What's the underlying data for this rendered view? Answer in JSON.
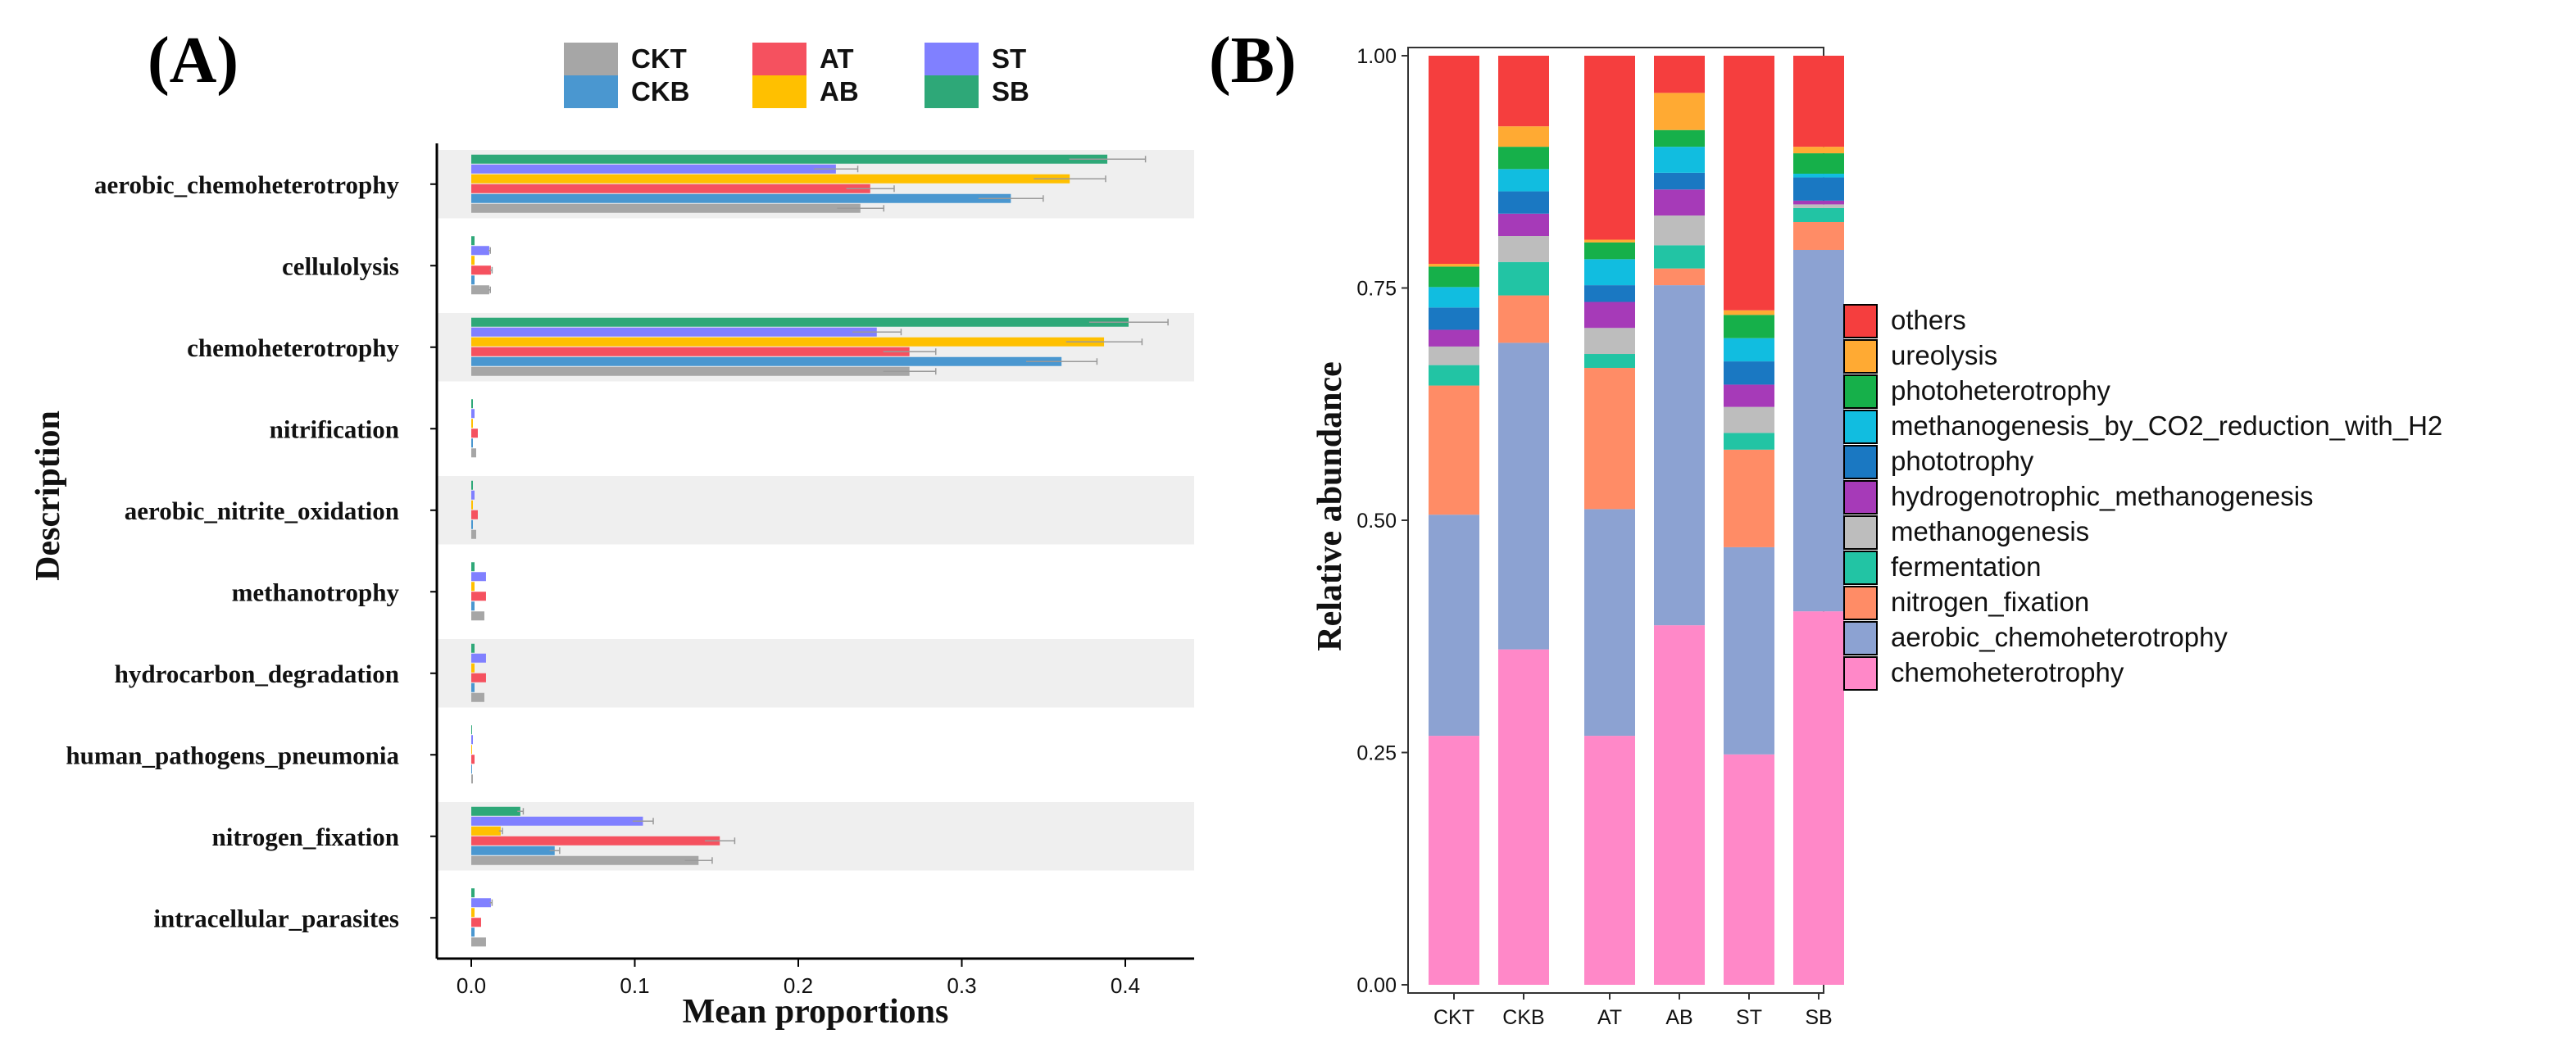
{
  "panelA": {
    "label": "(A)",
    "chart_data": {
      "type": "bar",
      "orientation": "horizontal",
      "xlabel": "Mean proportions",
      "ylabel": "Description",
      "xlim": [
        0,
        0.44
      ],
      "x_ticks": [
        "0.0",
        "0.1",
        "0.2",
        "0.3",
        "0.4"
      ],
      "categories": [
        "aerobic_chemoheterotrophy",
        "cellulolysis",
        "chemoheterotrophy",
        "nitrification",
        "aerobic_nitrite_oxidation",
        "methanotrophy",
        "hydrocarbon_degradation",
        "human_pathogens_pneumonia",
        "nitrogen_fixation",
        "intracellular_parasites"
      ],
      "series": [
        {
          "name": "CKT",
          "color": "#a6a6a6",
          "values": [
            0.238,
            0.011,
            0.268,
            0.003,
            0.003,
            0.008,
            0.008,
            0.001,
            0.139,
            0.009
          ]
        },
        {
          "name": "CKB",
          "color": "#4a97d0",
          "values": [
            0.33,
            0.002,
            0.361,
            0.001,
            0.001,
            0.002,
            0.002,
            0.0005,
            0.051,
            0.002
          ]
        },
        {
          "name": "AT",
          "color": "#f5515f",
          "values": [
            0.244,
            0.012,
            0.268,
            0.004,
            0.004,
            0.009,
            0.009,
            0.002,
            0.152,
            0.006
          ]
        },
        {
          "name": "AB",
          "color": "#ffc000",
          "values": [
            0.366,
            0.002,
            0.387,
            0.001,
            0.001,
            0.002,
            0.002,
            0.0005,
            0.018,
            0.002
          ]
        },
        {
          "name": "ST",
          "color": "#8080ff",
          "values": [
            0.223,
            0.011,
            0.248,
            0.002,
            0.002,
            0.009,
            0.009,
            0.001,
            0.105,
            0.012
          ]
        },
        {
          "name": "SB",
          "color": "#2ea878",
          "values": [
            0.389,
            0.002,
            0.402,
            0.001,
            0.001,
            0.002,
            0.002,
            0.0005,
            0.03,
            0.002
          ]
        }
      ],
      "legend": {
        "placement": "top"
      }
    }
  },
  "panelB": {
    "label": "(B)",
    "chart_data": {
      "type": "bar",
      "stacked": true,
      "ylabel": "Relative abundance",
      "ylim": [
        0,
        1
      ],
      "y_ticks": [
        "0.00",
        "0.25",
        "0.50",
        "0.75",
        "1.00"
      ],
      "categories": [
        "CKT",
        "CKB",
        "AT",
        "AB",
        "ST",
        "SB"
      ],
      "legend": {
        "placement": "right"
      },
      "series": [
        {
          "name": "chemoheterotrophy",
          "color": "#ff88c8",
          "values": [
            0.268,
            0.361,
            0.268,
            0.387,
            0.248,
            0.402
          ]
        },
        {
          "name": "aerobic_chemoheterotrophy",
          "color": "#8ca2d2",
          "values": [
            0.238,
            0.33,
            0.244,
            0.366,
            0.223,
            0.389
          ]
        },
        {
          "name": "nitrogen_fixation",
          "color": "#ff8c66",
          "values": [
            0.139,
            0.051,
            0.152,
            0.018,
            0.105,
            0.03
          ]
        },
        {
          "name": "fermentation",
          "color": "#22c4a4",
          "values": [
            0.022,
            0.036,
            0.015,
            0.025,
            0.018,
            0.015
          ]
        },
        {
          "name": "methanogenesis",
          "color": "#bdbdbd",
          "values": [
            0.02,
            0.028,
            0.028,
            0.032,
            0.028,
            0.004
          ]
        },
        {
          "name": "hydrogenotrophic_methanogenesis",
          "color": "#a63ab8",
          "values": [
            0.018,
            0.024,
            0.028,
            0.028,
            0.024,
            0.004
          ]
        },
        {
          "name": "phototrophy",
          "color": "#1a78c2",
          "values": [
            0.024,
            0.024,
            0.018,
            0.018,
            0.025,
            0.025
          ]
        },
        {
          "name": "methanogenesis_by_CO2_reduction_with_H2",
          "color": "#11bde0",
          "values": [
            0.022,
            0.024,
            0.028,
            0.028,
            0.025,
            0.004
          ]
        },
        {
          "name": "photoheterotrophy",
          "color": "#16b04a",
          "values": [
            0.022,
            0.024,
            0.018,
            0.018,
            0.025,
            0.022
          ]
        },
        {
          "name": "ureolysis",
          "color": "#ffaa33",
          "values": [
            0.003,
            0.022,
            0.003,
            0.04,
            0.005,
            0.007
          ]
        },
        {
          "name": "others",
          "color": "#f53e3e",
          "values": [
            0.224,
            0.076,
            0.198,
            0.04,
            0.274,
            0.098
          ]
        }
      ]
    }
  }
}
